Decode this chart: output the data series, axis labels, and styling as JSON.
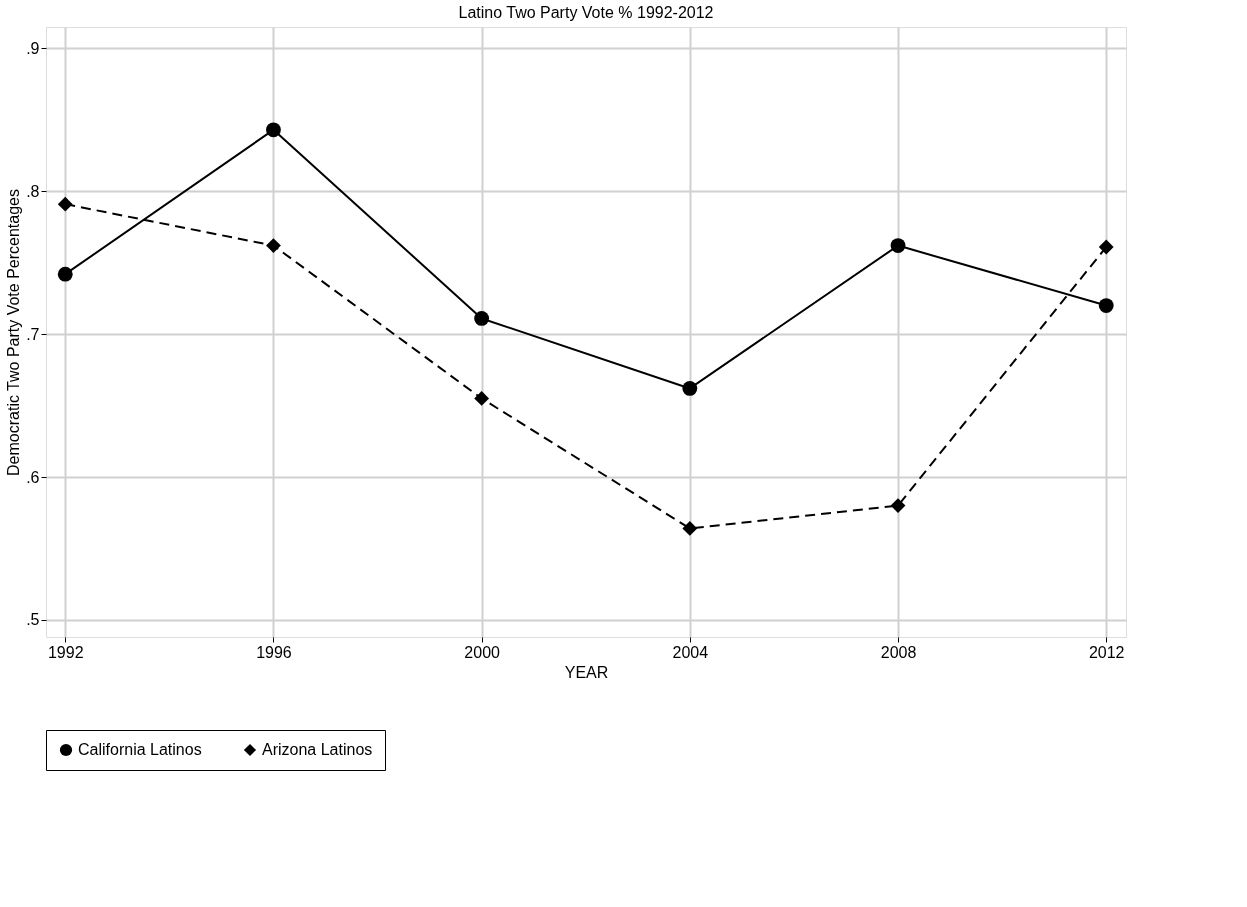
{
  "chart_data": {
    "type": "line",
    "title": "Latino Two Party Vote % 1992-2012",
    "xlabel": "YEAR",
    "ylabel": "Democratic Two Party Vote Percentages",
    "x": [
      1992,
      1996,
      2000,
      2004,
      2008,
      2012
    ],
    "series": [
      {
        "name": "California Latinos",
        "color": "#000000",
        "marker": "circle",
        "line_style": "solid",
        "values": [
          0.742,
          0.843,
          0.711,
          0.662,
          0.762,
          0.72
        ]
      },
      {
        "name": "Arizona Latinos",
        "color": "#000000",
        "marker": "diamond",
        "line_style": "dashed",
        "values": [
          0.791,
          0.762,
          0.655,
          0.564,
          0.58,
          0.761
        ]
      }
    ],
    "xlim": [
      1991.63,
      2012.38
    ],
    "xticks": [
      1992,
      1996,
      2000,
      2004,
      2008,
      2012
    ],
    "ylim": [
      0.488,
      0.915
    ],
    "yticks": [
      {
        "value": 0.5,
        "label": ".5"
      },
      {
        "value": 0.6,
        "label": ".6"
      },
      {
        "value": 0.7,
        "label": ".7"
      },
      {
        "value": 0.8,
        "label": ".8"
      },
      {
        "value": 0.9,
        "label": ".9"
      }
    ],
    "grid": true,
    "legend": "bottom"
  }
}
